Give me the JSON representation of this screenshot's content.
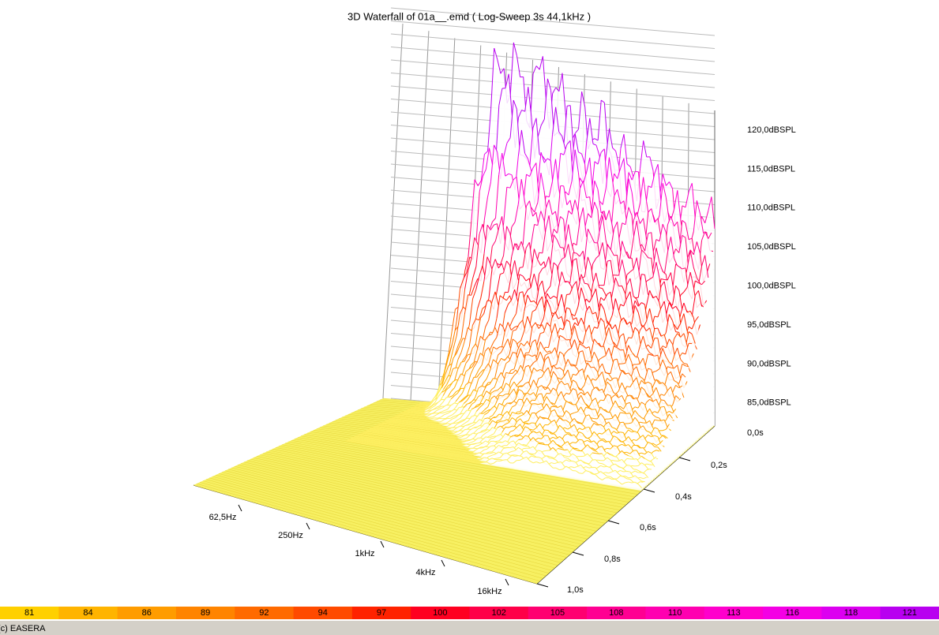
{
  "title": "3D Waterfall of 01a__.emd ( Log-Sweep 3s 44,1kHz )",
  "level_axis": {
    "labels": [
      "120,0dBSPL",
      "115,0dBSPL",
      "110,0dBSPL",
      "105,0dBSPL",
      "100,0dBSPL",
      "95,0dBSPL",
      "90,0dBSPL",
      "85,0dBSPL"
    ]
  },
  "time_axis": {
    "labels": [
      "0,0s",
      "0,2s",
      "0,4s",
      "0,6s",
      "0,8s",
      "1,0s"
    ]
  },
  "frequency_axis": {
    "labels": [
      "62,5Hz",
      "250Hz",
      "1kHz",
      "4kHz",
      "16kHz"
    ]
  },
  "color_scale": {
    "labels": [
      81,
      84,
      86,
      89,
      92,
      94,
      97,
      100,
      102,
      105,
      108,
      110,
      113,
      116,
      118,
      121
    ],
    "colors": [
      "#ffd000",
      "#ffb400",
      "#ff9c00",
      "#ff8400",
      "#ff6a00",
      "#ff4a00",
      "#ff2200",
      "#ff0020",
      "#ff0048",
      "#ff0070",
      "#ff0092",
      "#ff00b0",
      "#ff00cc",
      "#f400e4",
      "#dc00f0",
      "#b800f0"
    ]
  },
  "footer": "(c) EASERA"
}
